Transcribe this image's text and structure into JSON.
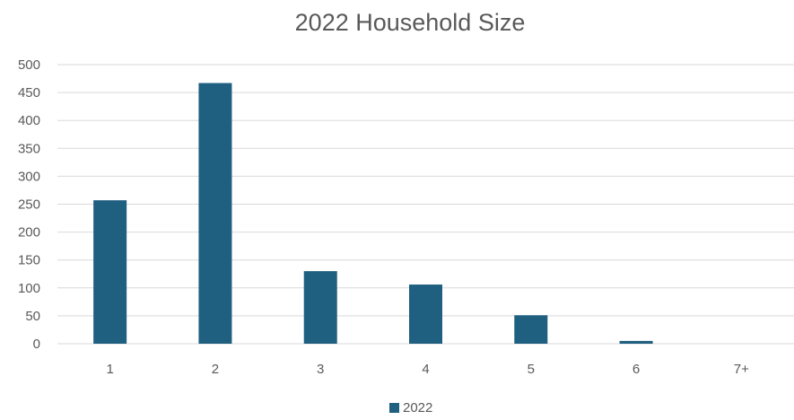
{
  "chart_data": {
    "type": "bar",
    "title": "2022 Household Size",
    "xlabel": "",
    "ylabel": "",
    "categories": [
      "1",
      "2",
      "3",
      "4",
      "5",
      "6",
      "7+"
    ],
    "series": [
      {
        "name": "2022",
        "color": "#1f5f7f",
        "values": [
          257,
          467,
          130,
          106,
          51,
          5,
          0
        ]
      }
    ],
    "ylim": [
      0,
      500
    ],
    "yticks": [
      0,
      50,
      100,
      150,
      200,
      250,
      300,
      350,
      400,
      450,
      500
    ],
    "grid": true,
    "legend_position": "bottom"
  }
}
